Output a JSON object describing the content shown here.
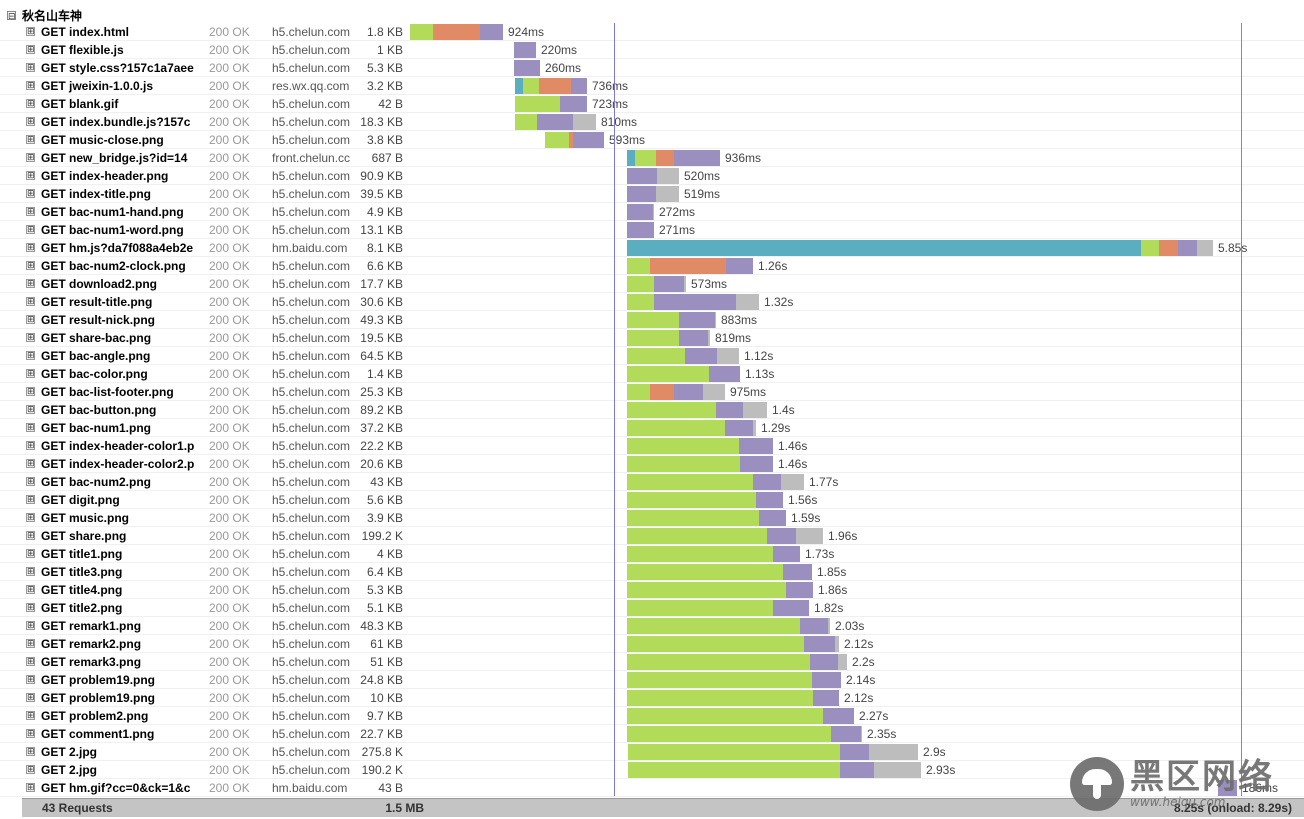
{
  "group": {
    "title": "秋名山车神",
    "toggle": "⊟"
  },
  "row_toggle": "⊞",
  "colors": {
    "blocked": "#5aaebf",
    "connect": "#b3db5a",
    "wait_dns": "#e08a66",
    "receive": "#9a8fbf",
    "cache": "#bdbdbd",
    "onload_line": "#7a7ad4",
    "load_line": "#b87a6a"
  },
  "requests": [
    {
      "url": "GET index.html",
      "status": "200 OK",
      "domain": "h5.chelun.com",
      "size": "1.8 KB",
      "time": "924ms",
      "start": 0,
      "segs": [
        [
          "connect",
          23
        ],
        [
          "wait_dns",
          47
        ],
        [
          "receive",
          23
        ]
      ]
    },
    {
      "url": "GET flexible.js",
      "status": "200 OK",
      "domain": "h5.chelun.com",
      "size": "1 KB",
      "time": "220ms",
      "start": 104,
      "segs": [
        [
          "receive",
          22
        ]
      ]
    },
    {
      "url": "GET style.css?157c1a7aee",
      "status": "200 OK",
      "domain": "h5.chelun.com",
      "size": "5.3 KB",
      "time": "260ms",
      "start": 104,
      "segs": [
        [
          "receive",
          26
        ]
      ]
    },
    {
      "url": "GET jweixin-1.0.0.js",
      "status": "200 OK",
      "domain": "res.wx.qq.com",
      "size": "3.2 KB",
      "time": "736ms",
      "start": 105,
      "segs": [
        [
          "blocked",
          8
        ],
        [
          "connect",
          16
        ],
        [
          "wait_dns",
          32
        ],
        [
          "receive",
          16
        ]
      ]
    },
    {
      "url": "GET blank.gif",
      "status": "200 OK",
      "domain": "h5.chelun.com",
      "size": "42 B",
      "time": "723ms",
      "start": 105,
      "segs": [
        [
          "connect",
          45
        ],
        [
          "receive",
          27
        ]
      ]
    },
    {
      "url": "GET index.bundle.js?157c",
      "status": "200 OK",
      "domain": "h5.chelun.com",
      "size": "18.3 KB",
      "time": "810ms",
      "start": 105,
      "segs": [
        [
          "connect",
          22
        ],
        [
          "receive",
          36
        ],
        [
          "cache",
          23
        ]
      ]
    },
    {
      "url": "GET music-close.png",
      "status": "200 OK",
      "domain": "h5.chelun.com",
      "size": "3.8 KB",
      "time": "593ms",
      "start": 135,
      "segs": [
        [
          "connect",
          24
        ],
        [
          "wait_dns",
          4
        ],
        [
          "receive",
          31
        ]
      ]
    },
    {
      "url": "GET new_bridge.js?id=14",
      "status": "200 OK",
      "domain": "front.chelun.cc",
      "size": "687 B",
      "time": "936ms",
      "start": 217,
      "segs": [
        [
          "blocked",
          8
        ],
        [
          "connect",
          21
        ],
        [
          "wait_dns",
          18
        ],
        [
          "receive",
          46
        ]
      ]
    },
    {
      "url": "GET index-header.png",
      "status": "200 OK",
      "domain": "h5.chelun.com",
      "size": "90.9 KB",
      "time": "520ms",
      "start": 217,
      "segs": [
        [
          "receive",
          30
        ],
        [
          "cache",
          22
        ]
      ]
    },
    {
      "url": "GET index-title.png",
      "status": "200 OK",
      "domain": "h5.chelun.com",
      "size": "39.5 KB",
      "time": "519ms",
      "start": 217,
      "segs": [
        [
          "receive",
          29
        ],
        [
          "cache",
          23
        ]
      ]
    },
    {
      "url": "GET bac-num1-hand.png",
      "status": "200 OK",
      "domain": "h5.chelun.com",
      "size": "4.9 KB",
      "time": "272ms",
      "start": 217,
      "segs": [
        [
          "receive",
          26
        ],
        [
          "cache",
          1
        ]
      ]
    },
    {
      "url": "GET bac-num1-word.png",
      "status": "200 OK",
      "domain": "h5.chelun.com",
      "size": "13.1 KB",
      "time": "271ms",
      "start": 217,
      "segs": [
        [
          "receive",
          27
        ]
      ]
    },
    {
      "url": "GET hm.js?da7f088a4eb2e",
      "status": "200 OK",
      "domain": "hm.baidu.com",
      "size": "8.1 KB",
      "time": "5.85s",
      "start": 217,
      "segs": [
        [
          "blocked",
          514
        ],
        [
          "connect",
          18
        ],
        [
          "wait_dns",
          19
        ],
        [
          "receive",
          19
        ],
        [
          "cache",
          16
        ]
      ]
    },
    {
      "url": "GET bac-num2-clock.png",
      "status": "200 OK",
      "domain": "h5.chelun.com",
      "size": "6.6 KB",
      "time": "1.26s",
      "start": 217,
      "segs": [
        [
          "connect",
          23
        ],
        [
          "wait_dns",
          76
        ],
        [
          "receive",
          27
        ]
      ]
    },
    {
      "url": "GET download2.png",
      "status": "200 OK",
      "domain": "h5.chelun.com",
      "size": "17.7 KB",
      "time": "573ms",
      "start": 217,
      "segs": [
        [
          "connect",
          27
        ],
        [
          "receive",
          30
        ],
        [
          "cache",
          2
        ]
      ]
    },
    {
      "url": "GET result-title.png",
      "status": "200 OK",
      "domain": "h5.chelun.com",
      "size": "30.6 KB",
      "time": "1.32s",
      "start": 217,
      "segs": [
        [
          "connect",
          27
        ],
        [
          "receive",
          82
        ],
        [
          "cache",
          23
        ]
      ]
    },
    {
      "url": "GET result-nick.png",
      "status": "200 OK",
      "domain": "h5.chelun.com",
      "size": "49.3 KB",
      "time": "883ms",
      "start": 217,
      "segs": [
        [
          "connect",
          52
        ],
        [
          "receive",
          36
        ],
        [
          "cache",
          1
        ]
      ]
    },
    {
      "url": "GET share-bac.png",
      "status": "200 OK",
      "domain": "h5.chelun.com",
      "size": "19.5 KB",
      "time": "819ms",
      "start": 217,
      "segs": [
        [
          "connect",
          52
        ],
        [
          "receive",
          29
        ],
        [
          "cache",
          2
        ]
      ]
    },
    {
      "url": "GET bac-angle.png",
      "status": "200 OK",
      "domain": "h5.chelun.com",
      "size": "64.5 KB",
      "time": "1.12s",
      "start": 217,
      "segs": [
        [
          "connect",
          58
        ],
        [
          "receive",
          32
        ],
        [
          "cache",
          22
        ]
      ]
    },
    {
      "url": "GET bac-color.png",
      "status": "200 OK",
      "domain": "h5.chelun.com",
      "size": "1.4 KB",
      "time": "1.13s",
      "start": 217,
      "segs": [
        [
          "connect",
          82
        ],
        [
          "receive",
          31
        ]
      ]
    },
    {
      "url": "GET bac-list-footer.png",
      "status": "200 OK",
      "domain": "h5.chelun.com",
      "size": "25.3 KB",
      "time": "975ms",
      "start": 217,
      "segs": [
        [
          "connect",
          23
        ],
        [
          "wait_dns",
          24
        ],
        [
          "receive",
          29
        ],
        [
          "cache",
          22
        ]
      ]
    },
    {
      "url": "GET bac-button.png",
      "status": "200 OK",
      "domain": "h5.chelun.com",
      "size": "89.2 KB",
      "time": "1.4s",
      "start": 217,
      "segs": [
        [
          "connect",
          89
        ],
        [
          "receive",
          27
        ],
        [
          "cache",
          24
        ]
      ]
    },
    {
      "url": "GET bac-num1.png",
      "status": "200 OK",
      "domain": "h5.chelun.com",
      "size": "37.2 KB",
      "time": "1.29s",
      "start": 217,
      "segs": [
        [
          "connect",
          98
        ],
        [
          "receive",
          28
        ],
        [
          "cache",
          3
        ]
      ]
    },
    {
      "url": "GET index-header-color1.p",
      "status": "200 OK",
      "domain": "h5.chelun.com",
      "size": "22.2 KB",
      "time": "1.46s",
      "start": 217,
      "segs": [
        [
          "connect",
          112
        ],
        [
          "receive",
          34
        ]
      ]
    },
    {
      "url": "GET index-header-color2.p",
      "status": "200 OK",
      "domain": "h5.chelun.com",
      "size": "20.6 KB",
      "time": "1.46s",
      "start": 217,
      "segs": [
        [
          "connect",
          113
        ],
        [
          "receive",
          33
        ]
      ]
    },
    {
      "url": "GET bac-num2.png",
      "status": "200 OK",
      "domain": "h5.chelun.com",
      "size": "43 KB",
      "time": "1.77s",
      "start": 217,
      "segs": [
        [
          "connect",
          126
        ],
        [
          "receive",
          28
        ],
        [
          "cache",
          23
        ]
      ]
    },
    {
      "url": "GET digit.png",
      "status": "200 OK",
      "domain": "h5.chelun.com",
      "size": "5.6 KB",
      "time": "1.56s",
      "start": 217,
      "segs": [
        [
          "connect",
          129
        ],
        [
          "receive",
          27
        ]
      ]
    },
    {
      "url": "GET music.png",
      "status": "200 OK",
      "domain": "h5.chelun.com",
      "size": "3.9 KB",
      "time": "1.59s",
      "start": 217,
      "segs": [
        [
          "connect",
          132
        ],
        [
          "receive",
          27
        ]
      ]
    },
    {
      "url": "GET share.png",
      "status": "200 OK",
      "domain": "h5.chelun.com",
      "size": "199.2 K",
      "time": "1.96s",
      "start": 217,
      "segs": [
        [
          "connect",
          140
        ],
        [
          "receive",
          29
        ],
        [
          "cache",
          27
        ]
      ]
    },
    {
      "url": "GET title1.png",
      "status": "200 OK",
      "domain": "h5.chelun.com",
      "size": "4 KB",
      "time": "1.73s",
      "start": 217,
      "segs": [
        [
          "connect",
          146
        ],
        [
          "receive",
          27
        ]
      ]
    },
    {
      "url": "GET title3.png",
      "status": "200 OK",
      "domain": "h5.chelun.com",
      "size": "6.4 KB",
      "time": "1.85s",
      "start": 217,
      "segs": [
        [
          "connect",
          156
        ],
        [
          "receive",
          29
        ]
      ]
    },
    {
      "url": "GET title4.png",
      "status": "200 OK",
      "domain": "h5.chelun.com",
      "size": "5.3 KB",
      "time": "1.86s",
      "start": 217,
      "segs": [
        [
          "connect",
          159
        ],
        [
          "receive",
          27
        ]
      ]
    },
    {
      "url": "GET title2.png",
      "status": "200 OK",
      "domain": "h5.chelun.com",
      "size": "5.1 KB",
      "time": "1.82s",
      "start": 217,
      "segs": [
        [
          "connect",
          146
        ],
        [
          "receive",
          36
        ]
      ]
    },
    {
      "url": "GET remark1.png",
      "status": "200 OK",
      "domain": "h5.chelun.com",
      "size": "48.3 KB",
      "time": "2.03s",
      "start": 217,
      "segs": [
        [
          "connect",
          173
        ],
        [
          "receive",
          28
        ],
        [
          "cache",
          2
        ]
      ]
    },
    {
      "url": "GET remark2.png",
      "status": "200 OK",
      "domain": "h5.chelun.com",
      "size": "61 KB",
      "time": "2.12s",
      "start": 217,
      "segs": [
        [
          "connect",
          177
        ],
        [
          "receive",
          31
        ],
        [
          "cache",
          4
        ]
      ]
    },
    {
      "url": "GET remark3.png",
      "status": "200 OK",
      "domain": "h5.chelun.com",
      "size": "51 KB",
      "time": "2.2s",
      "start": 217,
      "segs": [
        [
          "connect",
          183
        ],
        [
          "receive",
          28
        ],
        [
          "cache",
          9
        ]
      ]
    },
    {
      "url": "GET problem19.png",
      "status": "200 OK",
      "domain": "h5.chelun.com",
      "size": "24.8 KB",
      "time": "2.14s",
      "start": 217,
      "segs": [
        [
          "connect",
          185
        ],
        [
          "receive",
          29
        ]
      ]
    },
    {
      "url": "GET problem19.png",
      "status": "200 OK",
      "domain": "h5.chelun.com",
      "size": "10 KB",
      "time": "2.12s",
      "start": 217,
      "segs": [
        [
          "connect",
          186
        ],
        [
          "receive",
          26
        ]
      ]
    },
    {
      "url": "GET problem2.png",
      "status": "200 OK",
      "domain": "h5.chelun.com",
      "size": "9.7 KB",
      "time": "2.27s",
      "start": 217,
      "segs": [
        [
          "connect",
          196
        ],
        [
          "receive",
          31
        ]
      ]
    },
    {
      "url": "GET comment1.png",
      "status": "200 OK",
      "domain": "h5.chelun.com",
      "size": "22.7 KB",
      "time": "2.35s",
      "start": 217,
      "segs": [
        [
          "connect",
          204
        ],
        [
          "receive",
          30
        ],
        [
          "cache",
          1
        ]
      ]
    },
    {
      "url": "GET 2.jpg",
      "status": "200 OK",
      "domain": "h5.chelun.com",
      "size": "275.8 K",
      "time": "2.9s",
      "start": 218,
      "segs": [
        [
          "connect",
          212
        ],
        [
          "receive",
          29
        ],
        [
          "cache",
          49
        ]
      ]
    },
    {
      "url": "GET 2.jpg",
      "status": "200 OK",
      "domain": "h5.chelun.com",
      "size": "190.2 K",
      "time": "2.93s",
      "start": 218,
      "segs": [
        [
          "connect",
          212
        ],
        [
          "receive",
          34
        ],
        [
          "cache",
          47
        ]
      ]
    },
    {
      "url": "GET hm.gif?cc=0&ck=1&c",
      "status": "200 OK",
      "domain": "hm.baidu.com",
      "size": "43 B",
      "time": "186ms",
      "start": 808,
      "segs": [
        [
          "receive",
          19
        ]
      ]
    }
  ],
  "footer": {
    "requests": "43 Requests",
    "total_size": "1.5 MB",
    "timing": "8.25s (onload: 8.29s)"
  },
  "watermark": {
    "cn": "黑区网络",
    "en": "www.heiqu.com"
  }
}
